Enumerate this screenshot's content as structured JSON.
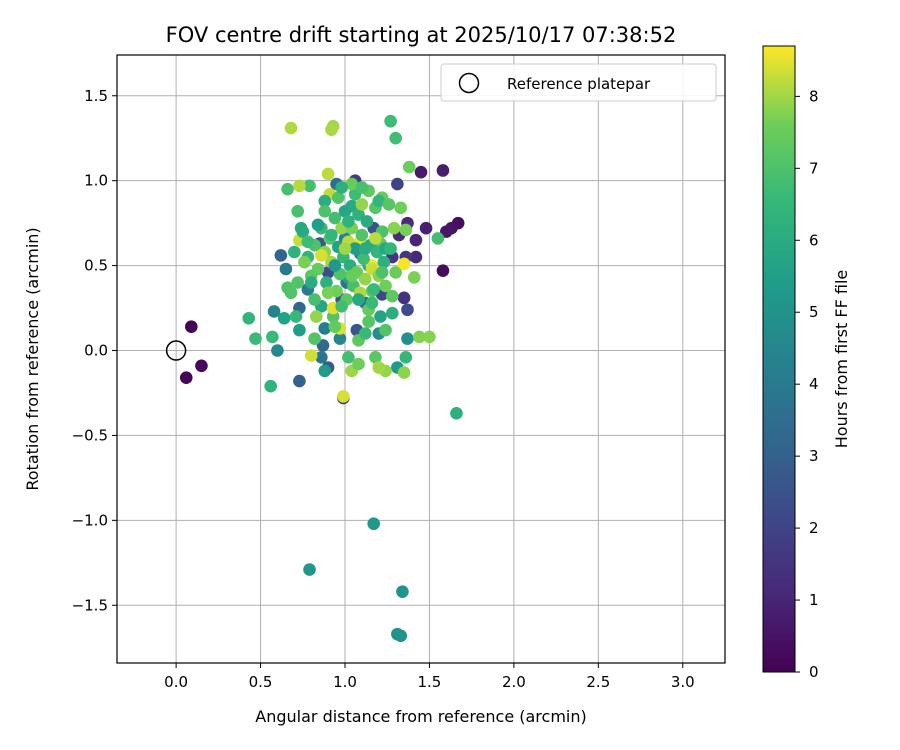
{
  "chart_data": {
    "type": "scatter",
    "title": "FOV centre drift starting at 2025/10/17 07:38:52",
    "xlabel": "Angular distance from reference (arcmin)",
    "ylabel": "Rotation from reference (arcmin)",
    "xlim": [
      -0.35,
      3.25
    ],
    "ylim": [
      -1.84,
      1.74
    ],
    "xticks": [
      0.0,
      0.5,
      1.0,
      1.5,
      2.0,
      2.5,
      3.0
    ],
    "xtick_labels": [
      "0.0",
      "0.5",
      "1.0",
      "1.5",
      "2.0",
      "2.5",
      "3.0"
    ],
    "yticks": [
      -1.5,
      -1.0,
      -0.5,
      0.0,
      0.5,
      1.0,
      1.5
    ],
    "ytick_labels": [
      "−1.5",
      "−1.0",
      "−0.5",
      "0.0",
      "0.5",
      "1.0",
      "1.5"
    ],
    "grid": true,
    "legend": {
      "position": "upper right",
      "entries": [
        "Reference platepar"
      ]
    },
    "reference_point": {
      "x": 0.0,
      "y": 0.0,
      "label": "Reference platepar"
    },
    "colorbar": {
      "label": "Hours from first FF file",
      "colormap": "viridis",
      "range": [
        0,
        8.7
      ],
      "ticks": [
        0,
        1,
        2,
        3,
        4,
        5,
        6,
        7,
        8
      ],
      "tick_labels": [
        "0",
        "1",
        "2",
        "3",
        "4",
        "5",
        "6",
        "7",
        "8"
      ]
    },
    "points": [
      {
        "x": 0.09,
        "y": 0.14,
        "hours": 0.1
      },
      {
        "x": 0.06,
        "y": -0.16,
        "hours": 0.15
      },
      {
        "x": 0.15,
        "y": -0.09,
        "hours": 0.2
      },
      {
        "x": 1.58,
        "y": 0.47,
        "hours": 0.3
      },
      {
        "x": 1.67,
        "y": 0.75,
        "hours": 0.4
      },
      {
        "x": 1.63,
        "y": 0.72,
        "hours": 0.5
      },
      {
        "x": 1.6,
        "y": 0.7,
        "hours": 0.6
      },
      {
        "x": 1.45,
        "y": 1.05,
        "hours": 0.7
      },
      {
        "x": 1.58,
        "y": 1.06,
        "hours": 0.8
      },
      {
        "x": 1.48,
        "y": 0.72,
        "hours": 0.9
      },
      {
        "x": 1.42,
        "y": 0.65,
        "hours": 1.0
      },
      {
        "x": 1.42,
        "y": 0.55,
        "hours": 1.1
      },
      {
        "x": 1.37,
        "y": 0.75,
        "hours": 1.2
      },
      {
        "x": 1.32,
        "y": 0.68,
        "hours": 1.3
      },
      {
        "x": 1.35,
        "y": 0.31,
        "hours": 1.4
      },
      {
        "x": 1.28,
        "y": 0.55,
        "hours": 1.5
      },
      {
        "x": 1.36,
        "y": 0.55,
        "hours": 1.6
      },
      {
        "x": 1.06,
        "y": 1.0,
        "hours": 1.7
      },
      {
        "x": 0.99,
        "y": -0.28,
        "hours": 1.8
      },
      {
        "x": 1.31,
        "y": 0.98,
        "hours": 2.0
      },
      {
        "x": 1.22,
        "y": 0.33,
        "hours": 2.1
      },
      {
        "x": 1.37,
        "y": 0.24,
        "hours": 2.2
      },
      {
        "x": 0.9,
        "y": 0.46,
        "hours": 2.3
      },
      {
        "x": 0.98,
        "y": 0.3,
        "hours": 2.4
      },
      {
        "x": 1.17,
        "y": 0.72,
        "hours": 2.5
      },
      {
        "x": 1.07,
        "y": 0.12,
        "hours": 2.6
      },
      {
        "x": 0.85,
        "y": 0.63,
        "hours": 2.7
      },
      {
        "x": 0.9,
        "y": -0.1,
        "hours": 2.8
      },
      {
        "x": 0.73,
        "y": -0.18,
        "hours": 3.0
      },
      {
        "x": 0.62,
        "y": 0.56,
        "hours": 3.2
      },
      {
        "x": 0.73,
        "y": 0.25,
        "hours": 3.3
      },
      {
        "x": 0.87,
        "y": 0.03,
        "hours": 3.4
      },
      {
        "x": 0.95,
        "y": 0.98,
        "hours": 3.5
      },
      {
        "x": 1.12,
        "y": 0.28,
        "hours": 3.6
      },
      {
        "x": 1.01,
        "y": 0.4,
        "hours": 3.7
      },
      {
        "x": 0.86,
        "y": -0.04,
        "hours": 3.8
      },
      {
        "x": 0.65,
        "y": 0.48,
        "hours": 4.0
      },
      {
        "x": 0.78,
        "y": 0.36,
        "hours": 4.1
      },
      {
        "x": 0.88,
        "y": 0.13,
        "hours": 4.2
      },
      {
        "x": 1.0,
        "y": 0.66,
        "hours": 4.3
      },
      {
        "x": 0.58,
        "y": 0.23,
        "hours": 4.4
      },
      {
        "x": 0.97,
        "y": 0.07,
        "hours": 4.5
      },
      {
        "x": 0.6,
        "y": 0.0,
        "hours": 4.6
      },
      {
        "x": 1.09,
        "y": 0.57,
        "hours": 4.7
      },
      {
        "x": 1.2,
        "y": 0.1,
        "hours": 4.8
      },
      {
        "x": 1.37,
        "y": 0.07,
        "hours": 4.9
      },
      {
        "x": 1.31,
        "y": -1.67,
        "hours": 5.0
      },
      {
        "x": 1.33,
        "y": -1.68,
        "hours": 5.05
      },
      {
        "x": 1.34,
        "y": -1.42,
        "hours": 5.1
      },
      {
        "x": 0.79,
        "y": -1.29,
        "hours": 5.15
      },
      {
        "x": 1.17,
        "y": -1.02,
        "hours": 5.2
      },
      {
        "x": 1.31,
        "y": -0.1,
        "hours": 5.3
      },
      {
        "x": 0.88,
        "y": -0.12,
        "hours": 5.4
      },
      {
        "x": 0.73,
        "y": 0.12,
        "hours": 5.5
      },
      {
        "x": 0.64,
        "y": 0.19,
        "hours": 5.6
      },
      {
        "x": 1.02,
        "y": 0.43,
        "hours": 5.7
      },
      {
        "x": 0.86,
        "y": 0.26,
        "hours": 5.8
      },
      {
        "x": 1.04,
        "y": 0.85,
        "hours": 5.9
      },
      {
        "x": 1.14,
        "y": 0.5,
        "hours": 6.0
      },
      {
        "x": 1.28,
        "y": 0.22,
        "hours": 6.1
      },
      {
        "x": 1.66,
        "y": -0.37,
        "hours": 6.2
      },
      {
        "x": 0.56,
        "y": -0.21,
        "hours": 6.3
      },
      {
        "x": 0.43,
        "y": 0.19,
        "hours": 6.4
      },
      {
        "x": 1.36,
        "y": -0.04,
        "hours": 6.5
      },
      {
        "x": 0.71,
        "y": 0.2,
        "hours": 6.55
      },
      {
        "x": 0.57,
        "y": 0.08,
        "hours": 6.6
      },
      {
        "x": 0.47,
        "y": 0.07,
        "hours": 6.65
      },
      {
        "x": 1.27,
        "y": 1.35,
        "hours": 6.7
      },
      {
        "x": 1.3,
        "y": 1.25,
        "hours": 6.75
      },
      {
        "x": 1.55,
        "y": 0.66,
        "hours": 6.8
      },
      {
        "x": 0.79,
        "y": 0.97,
        "hours": 6.85
      },
      {
        "x": 0.66,
        "y": 0.95,
        "hours": 6.9
      },
      {
        "x": 0.72,
        "y": 0.82,
        "hours": 6.95
      },
      {
        "x": 0.66,
        "y": 0.37,
        "hours": 7.0
      },
      {
        "x": 0.68,
        "y": 0.34,
        "hours": 7.05
      },
      {
        "x": 0.82,
        "y": 0.07,
        "hours": 7.1
      },
      {
        "x": 0.93,
        "y": 0.2,
        "hours": 7.15
      },
      {
        "x": 1.14,
        "y": 0.17,
        "hours": 7.2
      },
      {
        "x": 1.18,
        "y": -0.04,
        "hours": 7.25
      },
      {
        "x": 1.08,
        "y": 0.06,
        "hours": 7.3
      },
      {
        "x": 1.16,
        "y": 0.35,
        "hours": 7.35
      },
      {
        "x": 1.21,
        "y": 0.63,
        "hours": 7.4
      },
      {
        "x": 1.22,
        "y": 0.9,
        "hours": 7.45
      },
      {
        "x": 1.3,
        "y": 0.46,
        "hours": 7.5
      },
      {
        "x": 1.38,
        "y": 1.08,
        "hours": 7.55
      },
      {
        "x": 1.33,
        "y": 0.84,
        "hours": 7.6
      },
      {
        "x": 1.36,
        "y": 0.71,
        "hours": 7.65
      },
      {
        "x": 1.41,
        "y": 0.43,
        "hours": 7.7
      },
      {
        "x": 1.44,
        "y": 0.08,
        "hours": 7.75
      },
      {
        "x": 1.5,
        "y": 0.08,
        "hours": 7.8
      },
      {
        "x": 1.35,
        "y": -0.13,
        "hours": 7.85
      },
      {
        "x": 1.24,
        "y": -0.12,
        "hours": 7.9
      },
      {
        "x": 1.04,
        "y": -0.12,
        "hours": 7.95
      },
      {
        "x": 0.93,
        "y": 1.32,
        "hours": 8.0
      },
      {
        "x": 0.92,
        "y": 1.3,
        "hours": 8.05
      },
      {
        "x": 0.68,
        "y": 1.31,
        "hours": 8.1
      },
      {
        "x": 0.73,
        "y": 0.97,
        "hours": 8.15
      },
      {
        "x": 0.9,
        "y": 1.04,
        "hours": 8.2
      },
      {
        "x": 0.91,
        "y": 0.92,
        "hours": 8.25
      },
      {
        "x": 0.73,
        "y": 0.65,
        "hours": 8.3
      },
      {
        "x": 0.8,
        "y": -0.03,
        "hours": 8.35
      },
      {
        "x": 0.99,
        "y": -0.27,
        "hours": 8.4
      },
      {
        "x": 0.97,
        "y": 0.13,
        "hours": 8.45
      },
      {
        "x": 0.93,
        "y": 0.25,
        "hours": 8.5
      },
      {
        "x": 1.09,
        "y": 0.64,
        "hours": 8.55
      },
      {
        "x": 1.16,
        "y": 0.5,
        "hours": 8.6
      },
      {
        "x": 1.35,
        "y": 0.51,
        "hours": 8.65
      },
      {
        "x": 0.75,
        "y": 0.7,
        "hours": 6.0
      },
      {
        "x": 0.78,
        "y": 0.55,
        "hours": 6.4
      },
      {
        "x": 0.82,
        "y": 0.62,
        "hours": 7.0
      },
      {
        "x": 0.84,
        "y": 0.48,
        "hours": 7.4
      },
      {
        "x": 0.86,
        "y": 0.72,
        "hours": 6.6
      },
      {
        "x": 0.88,
        "y": 0.58,
        "hours": 7.8
      },
      {
        "x": 0.89,
        "y": 0.4,
        "hours": 6.2
      },
      {
        "x": 0.91,
        "y": 0.66,
        "hours": 7.2
      },
      {
        "x": 0.92,
        "y": 0.52,
        "hours": 8.0
      },
      {
        "x": 0.94,
        "y": 0.78,
        "hours": 6.8
      },
      {
        "x": 0.95,
        "y": 0.35,
        "hours": 7.6
      },
      {
        "x": 0.96,
        "y": 0.61,
        "hours": 5.6
      },
      {
        "x": 0.97,
        "y": 0.45,
        "hours": 7.0
      },
      {
        "x": 0.98,
        "y": 0.72,
        "hours": 7.9
      },
      {
        "x": 0.99,
        "y": 0.55,
        "hours": 6.5
      },
      {
        "x": 1.0,
        "y": 0.82,
        "hours": 5.8
      },
      {
        "x": 1.01,
        "y": 0.3,
        "hours": 7.3
      },
      {
        "x": 1.02,
        "y": 0.64,
        "hours": 8.2
      },
      {
        "x": 1.03,
        "y": 0.5,
        "hours": 6.1
      },
      {
        "x": 1.04,
        "y": 0.72,
        "hours": 7.7
      },
      {
        "x": 1.05,
        "y": 0.38,
        "hours": 6.9
      },
      {
        "x": 1.06,
        "y": 0.6,
        "hours": 5.4
      },
      {
        "x": 1.07,
        "y": 0.46,
        "hours": 7.5
      },
      {
        "x": 1.08,
        "y": 0.8,
        "hours": 6.3
      },
      {
        "x": 1.09,
        "y": 0.34,
        "hours": 8.1
      },
      {
        "x": 1.1,
        "y": 0.68,
        "hours": 7.1
      },
      {
        "x": 1.11,
        "y": 0.54,
        "hours": 6.7
      },
      {
        "x": 1.12,
        "y": 0.42,
        "hours": 7.9
      },
      {
        "x": 1.13,
        "y": 0.76,
        "hours": 6.0
      },
      {
        "x": 1.14,
        "y": 0.24,
        "hours": 7.4
      },
      {
        "x": 1.15,
        "y": 0.62,
        "hours": 5.9
      },
      {
        "x": 1.16,
        "y": 0.48,
        "hours": 8.3
      },
      {
        "x": 1.17,
        "y": 0.36,
        "hours": 6.6
      },
      {
        "x": 1.18,
        "y": 0.84,
        "hours": 7.2
      },
      {
        "x": 1.19,
        "y": 0.58,
        "hours": 6.4
      },
      {
        "x": 1.2,
        "y": 0.44,
        "hours": 7.8
      },
      {
        "x": 1.21,
        "y": 0.2,
        "hours": 5.7
      },
      {
        "x": 1.22,
        "y": 0.7,
        "hours": 7.0
      },
      {
        "x": 1.23,
        "y": 0.52,
        "hours": 6.2
      },
      {
        "x": 1.24,
        "y": 0.38,
        "hours": 7.6
      },
      {
        "x": 0.8,
        "y": 0.44,
        "hours": 7.3
      },
      {
        "x": 0.82,
        "y": 0.3,
        "hours": 6.9
      },
      {
        "x": 0.84,
        "y": 0.74,
        "hours": 5.5
      },
      {
        "x": 0.86,
        "y": 0.56,
        "hours": 8.4
      },
      {
        "x": 0.88,
        "y": 0.88,
        "hours": 6.1
      },
      {
        "x": 0.9,
        "y": 0.34,
        "hours": 7.7
      },
      {
        "x": 0.92,
        "y": 0.68,
        "hours": 6.5
      },
      {
        "x": 0.94,
        "y": 0.5,
        "hours": 5.2
      },
      {
        "x": 0.96,
        "y": 0.9,
        "hours": 7.1
      },
      {
        "x": 0.98,
        "y": 0.26,
        "hours": 6.8
      },
      {
        "x": 1.0,
        "y": 0.6,
        "hours": 8.0
      },
      {
        "x": 1.02,
        "y": 0.76,
        "hours": 6.3
      },
      {
        "x": 1.04,
        "y": 0.44,
        "hours": 7.5
      },
      {
        "x": 1.06,
        "y": 0.92,
        "hours": 6.7
      },
      {
        "x": 1.08,
        "y": 0.3,
        "hours": 5.9
      },
      {
        "x": 1.1,
        "y": 0.86,
        "hours": 7.9
      },
      {
        "x": 1.12,
        "y": 0.6,
        "hours": 6.0
      },
      {
        "x": 1.14,
        "y": 0.94,
        "hours": 7.3
      },
      {
        "x": 1.16,
        "y": 0.28,
        "hours": 6.6
      },
      {
        "x": 1.18,
        "y": 0.66,
        "hours": 8.2
      },
      {
        "x": 1.2,
        "y": 0.88,
        "hours": 6.4
      },
      {
        "x": 1.22,
        "y": 0.46,
        "hours": 7.0
      },
      {
        "x": 1.24,
        "y": 0.6,
        "hours": 5.8
      },
      {
        "x": 0.7,
        "y": 0.58,
        "hours": 6.3
      },
      {
        "x": 0.72,
        "y": 0.4,
        "hours": 7.1
      },
      {
        "x": 0.74,
        "y": 0.72,
        "hours": 5.9
      },
      {
        "x": 0.76,
        "y": 0.52,
        "hours": 7.7
      },
      {
        "x": 0.78,
        "y": 0.64,
        "hours": 6.7
      },
      {
        "x": 0.8,
        "y": 0.4,
        "hours": 6.0
      },
      {
        "x": 1.26,
        "y": 0.86,
        "hours": 7.2
      },
      {
        "x": 1.27,
        "y": 0.6,
        "hours": 6.5
      },
      {
        "x": 1.29,
        "y": 0.72,
        "hours": 7.8
      },
      {
        "x": 0.94,
        "y": 0.14,
        "hours": 7.4
      },
      {
        "x": 1.02,
        "y": -0.04,
        "hours": 6.8
      },
      {
        "x": 1.08,
        "y": -0.08,
        "hours": 7.6
      },
      {
        "x": 1.2,
        "y": -0.1,
        "hours": 8.0
      },
      {
        "x": 1.04,
        "y": 0.98,
        "hours": 7.5
      },
      {
        "x": 1.1,
        "y": 0.96,
        "hours": 6.9
      },
      {
        "x": 0.98,
        "y": 0.96,
        "hours": 6.2
      },
      {
        "x": 0.88,
        "y": 0.82,
        "hours": 7.0
      },
      {
        "x": 1.28,
        "y": 0.32,
        "hours": 7.3
      },
      {
        "x": 0.83,
        "y": 0.2,
        "hours": 7.9
      },
      {
        "x": 1.12,
        "y": 0.1,
        "hours": 6.6
      },
      {
        "x": 1.24,
        "y": 0.12,
        "hours": 7.1
      }
    ]
  }
}
